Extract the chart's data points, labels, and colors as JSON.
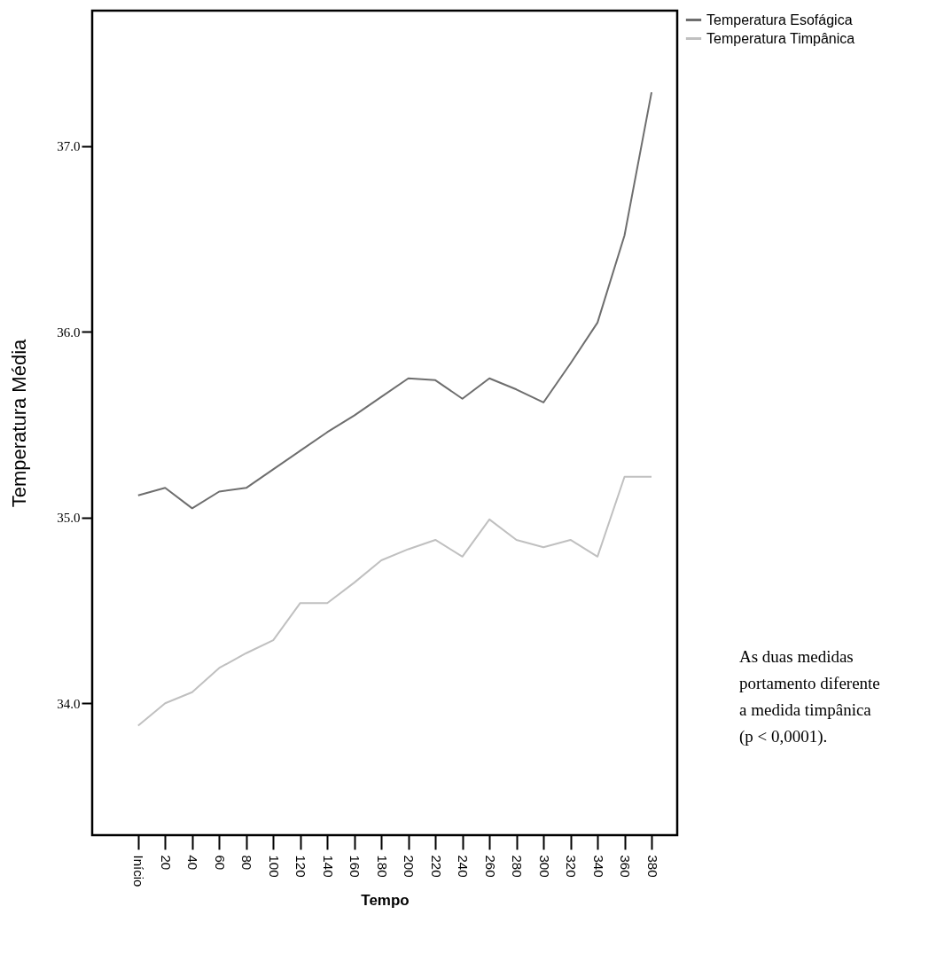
{
  "chart_data": {
    "type": "line",
    "xlabel": "Tempo",
    "ylabel": "Temperatura Média",
    "categories": [
      "Início",
      "20",
      "40",
      "60",
      "80",
      "100",
      "120",
      "140",
      "160",
      "180",
      "200",
      "220",
      "240",
      "260",
      "280",
      "300",
      "320",
      "340",
      "360",
      "380"
    ],
    "series": [
      {
        "name": "Temperatura Esofágica",
        "color": "#6e6e6e",
        "values": [
          35.12,
          35.16,
          35.05,
          35.14,
          35.16,
          35.26,
          35.36,
          35.46,
          35.55,
          35.65,
          35.75,
          35.74,
          35.64,
          35.75,
          35.69,
          35.62,
          35.83,
          36.05,
          36.52,
          37.29
        ]
      },
      {
        "name": "Temperatura Timpânica",
        "color": "#c0c0c0",
        "values": [
          33.88,
          34.0,
          34.06,
          34.19,
          34.27,
          34.34,
          34.54,
          34.54,
          34.65,
          34.77,
          34.83,
          34.88,
          34.79,
          34.99,
          34.88,
          34.84,
          34.88,
          34.79,
          35.22,
          35.22
        ]
      }
    ],
    "ylim": [
      33.29,
      37.73
    ],
    "yticks": [
      {
        "value": 34,
        "label": "34.0"
      },
      {
        "value": 35,
        "label": "35.0"
      },
      {
        "value": 36,
        "label": "36.0"
      },
      {
        "value": 37,
        "label": "37.0"
      }
    ],
    "grid": false,
    "legend": "top right",
    "marker": "none",
    "line_style": "solid",
    "annotations": [
      "As duas medidas\nportamento diferente\na medida timpânica\n(p < 0,0001)."
    ]
  }
}
